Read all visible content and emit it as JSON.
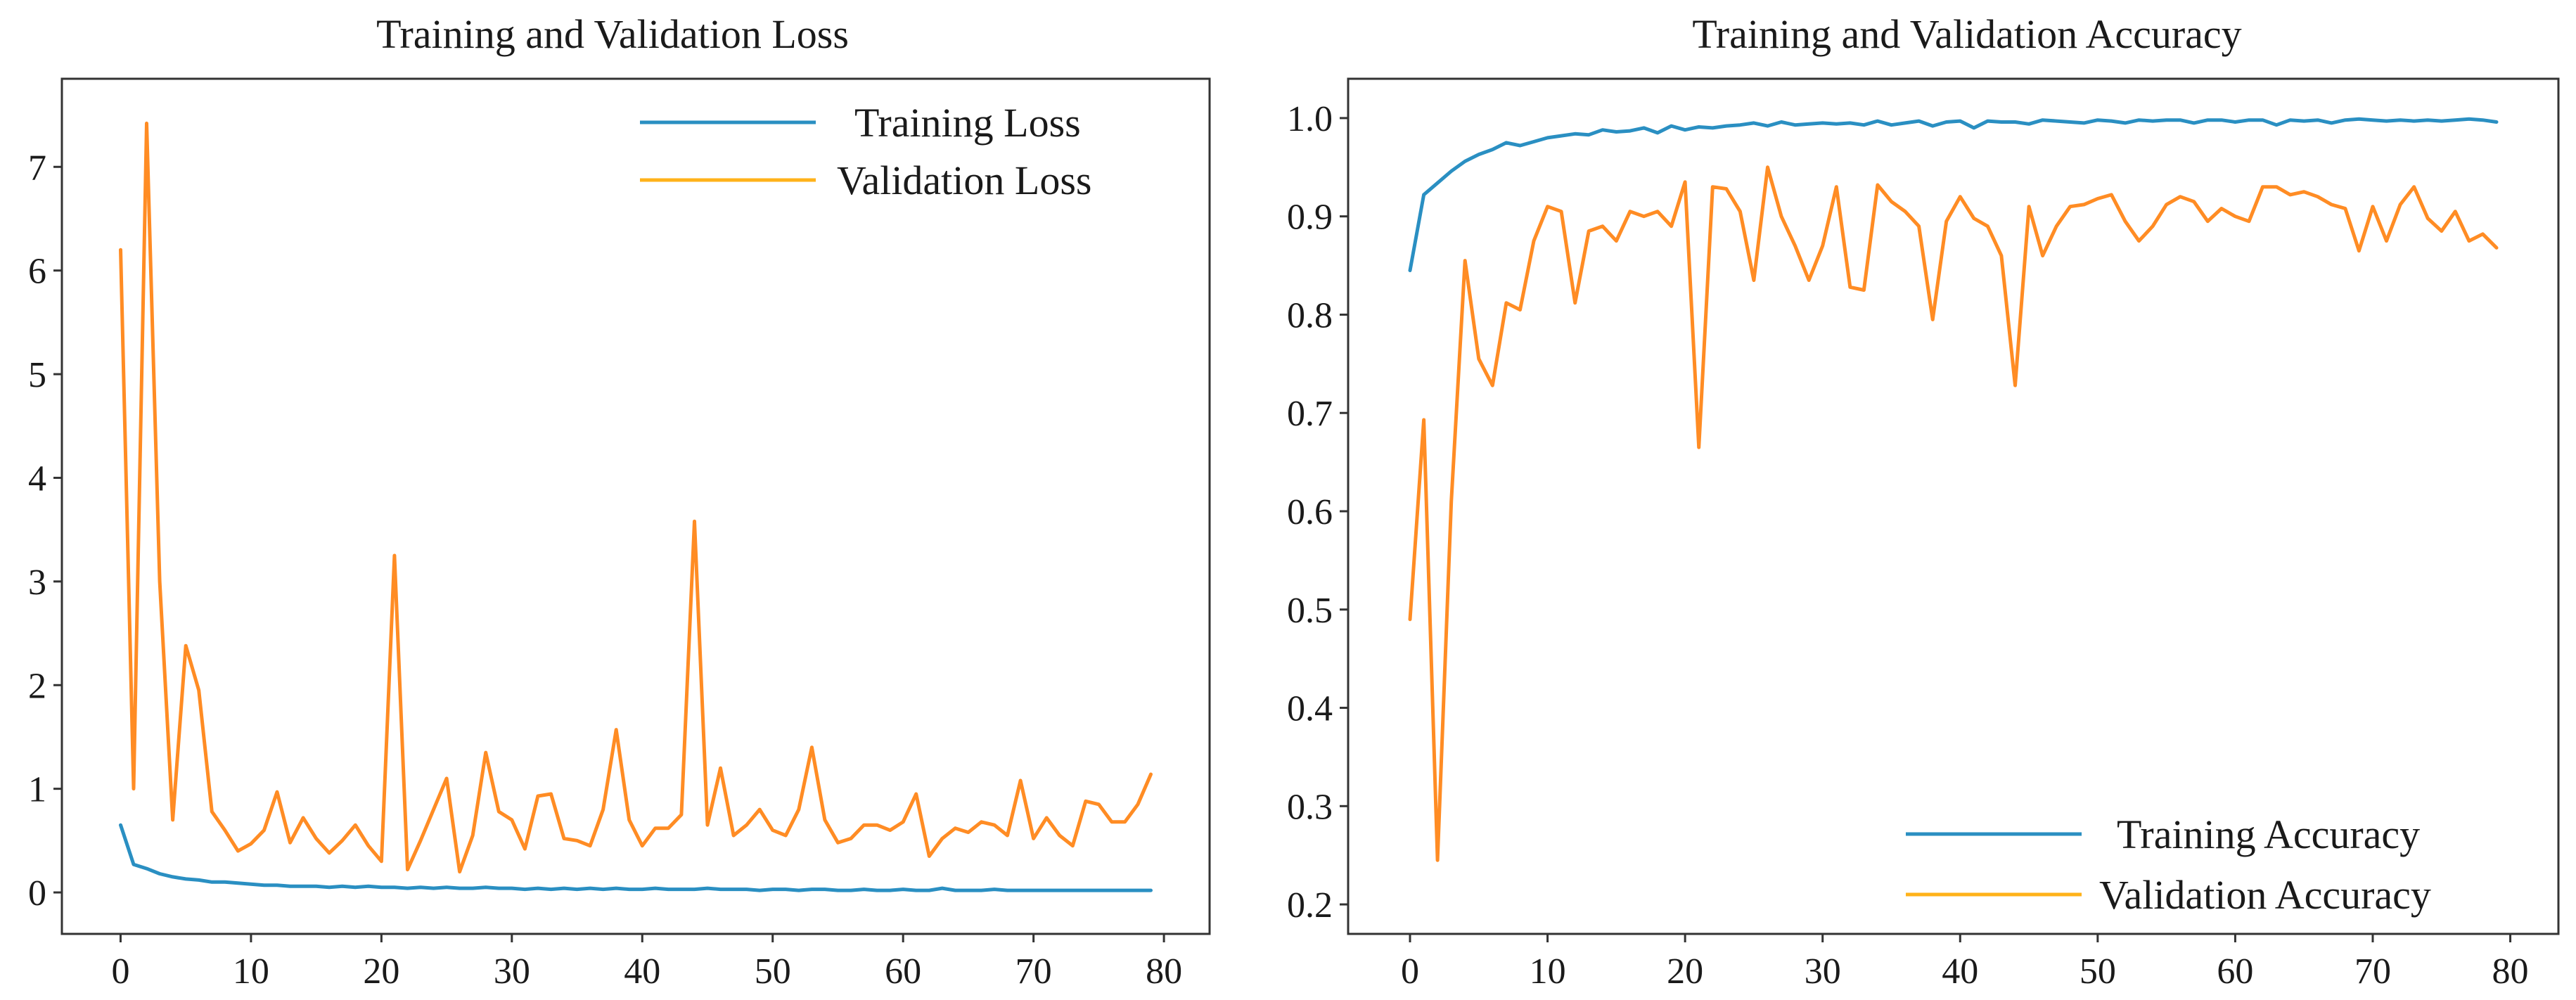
{
  "colors": {
    "training": "#2a8fc2",
    "validation": "#ff8c24",
    "legend_validation": "#ffb21a",
    "axis": "#333333"
  },
  "chart_data": [
    {
      "type": "line",
      "title": "Training and Validation Loss",
      "xlabel": "",
      "ylabel": "",
      "xlim": [
        -4.5,
        83.5
      ],
      "ylim": [
        -0.4,
        7.85
      ],
      "xticks": [
        0,
        10,
        20,
        30,
        40,
        50,
        60,
        70,
        80
      ],
      "yticks": [
        0,
        1,
        2,
        3,
        4,
        5,
        6,
        7
      ],
      "legend_position": "top-right",
      "x": [
        0,
        1,
        2,
        3,
        4,
        5,
        6,
        7,
        8,
        9,
        10,
        11,
        12,
        13,
        14,
        15,
        16,
        17,
        18,
        19,
        20,
        21,
        22,
        23,
        24,
        25,
        26,
        27,
        28,
        29,
        30,
        31,
        32,
        33,
        34,
        35,
        36,
        37,
        38,
        39,
        40,
        41,
        42,
        43,
        44,
        45,
        46,
        47,
        48,
        49,
        50,
        51,
        52,
        53,
        54,
        55,
        56,
        57,
        58,
        59,
        60,
        61,
        62,
        63,
        64,
        65,
        66,
        67,
        68,
        69,
        70,
        71,
        72,
        73,
        74,
        75,
        76,
        77,
        78,
        79
      ],
      "series": [
        {
          "name": "Training Loss",
          "color": "#2a8fc2",
          "values": [
            0.65,
            0.27,
            0.23,
            0.18,
            0.15,
            0.13,
            0.12,
            0.1,
            0.1,
            0.09,
            0.08,
            0.07,
            0.07,
            0.06,
            0.06,
            0.06,
            0.05,
            0.06,
            0.05,
            0.06,
            0.05,
            0.05,
            0.04,
            0.05,
            0.04,
            0.05,
            0.04,
            0.04,
            0.05,
            0.04,
            0.04,
            0.03,
            0.04,
            0.03,
            0.04,
            0.03,
            0.04,
            0.03,
            0.04,
            0.03,
            0.03,
            0.04,
            0.03,
            0.03,
            0.03,
            0.04,
            0.03,
            0.03,
            0.03,
            0.02,
            0.03,
            0.03,
            0.02,
            0.03,
            0.03,
            0.02,
            0.02,
            0.03,
            0.02,
            0.02,
            0.03,
            0.02,
            0.02,
            0.04,
            0.02,
            0.02,
            0.02,
            0.03,
            0.02,
            0.02,
            0.02,
            0.02,
            0.02,
            0.02,
            0.02,
            0.02,
            0.02,
            0.02,
            0.02,
            0.02
          ]
        },
        {
          "name": "Validation Loss",
          "color": "#ff8c24",
          "values": [
            6.2,
            1.0,
            7.42,
            3.0,
            0.7,
            2.38,
            1.95,
            0.78,
            0.6,
            0.4,
            0.47,
            0.6,
            0.97,
            0.48,
            0.72,
            0.52,
            0.38,
            0.5,
            0.65,
            0.45,
            0.3,
            3.25,
            0.22,
            0.5,
            0.8,
            1.1,
            0.2,
            0.55,
            1.35,
            0.78,
            0.7,
            0.42,
            0.93,
            0.95,
            0.52,
            0.5,
            0.45,
            0.8,
            1.57,
            0.7,
            0.45,
            0.62,
            0.62,
            0.75,
            3.58,
            0.65,
            1.2,
            0.55,
            0.65,
            0.8,
            0.6,
            0.55,
            0.8,
            1.4,
            0.7,
            0.48,
            0.52,
            0.65,
            0.65,
            0.6,
            0.68,
            0.95,
            0.35,
            0.52,
            0.62,
            0.58,
            0.68,
            0.65,
            0.55,
            1.08,
            0.52,
            0.72,
            0.55,
            0.45,
            0.88,
            0.85,
            0.68,
            0.68,
            0.85,
            1.14
          ]
        }
      ]
    },
    {
      "type": "line",
      "title": "Training and Validation Accuracy",
      "xlabel": "",
      "ylabel": "",
      "xlim": [
        -4.5,
        83.5
      ],
      "ylim": [
        0.17,
        1.04
      ],
      "xticks": [
        0,
        10,
        20,
        30,
        40,
        50,
        60,
        70,
        80
      ],
      "yticks": [
        0.2,
        0.3,
        0.4,
        0.5,
        0.6,
        0.7,
        0.8,
        0.9,
        1.0
      ],
      "legend_position": "bottom-right",
      "x": [
        0,
        1,
        2,
        3,
        4,
        5,
        6,
        7,
        8,
        9,
        10,
        11,
        12,
        13,
        14,
        15,
        16,
        17,
        18,
        19,
        20,
        21,
        22,
        23,
        24,
        25,
        26,
        27,
        28,
        29,
        30,
        31,
        32,
        33,
        34,
        35,
        36,
        37,
        38,
        39,
        40,
        41,
        42,
        43,
        44,
        45,
        46,
        47,
        48,
        49,
        50,
        51,
        52,
        53,
        54,
        55,
        56,
        57,
        58,
        59,
        60,
        61,
        62,
        63,
        64,
        65,
        66,
        67,
        68,
        69,
        70,
        71,
        72,
        73,
        74,
        75,
        76,
        77,
        78,
        79
      ],
      "series": [
        {
          "name": "Training Accuracy",
          "color": "#2a8fc2",
          "values": [
            0.845,
            0.922,
            0.934,
            0.946,
            0.956,
            0.963,
            0.968,
            0.975,
            0.972,
            0.976,
            0.98,
            0.982,
            0.984,
            0.983,
            0.988,
            0.986,
            0.987,
            0.99,
            0.985,
            0.992,
            0.988,
            0.991,
            0.99,
            0.992,
            0.993,
            0.995,
            0.992,
            0.996,
            0.993,
            0.994,
            0.995,
            0.994,
            0.995,
            0.993,
            0.997,
            0.993,
            0.995,
            0.997,
            0.992,
            0.996,
            0.997,
            0.99,
            0.997,
            0.996,
            0.996,
            0.994,
            0.998,
            0.997,
            0.996,
            0.995,
            0.998,
            0.997,
            0.995,
            0.998,
            0.997,
            0.998,
            0.998,
            0.995,
            0.998,
            0.998,
            0.996,
            0.998,
            0.998,
            0.993,
            0.998,
            0.997,
            0.998,
            0.995,
            0.998,
            0.999,
            0.998,
            0.997,
            0.998,
            0.997,
            0.998,
            0.997,
            0.998,
            0.999,
            0.998,
            0.996
          ]
        },
        {
          "name": "Validation Accuracy",
          "color": "#ff8c24",
          "values": [
            0.49,
            0.693,
            0.245,
            0.61,
            0.855,
            0.755,
            0.728,
            0.812,
            0.805,
            0.875,
            0.91,
            0.905,
            0.812,
            0.885,
            0.89,
            0.875,
            0.905,
            0.9,
            0.905,
            0.89,
            0.935,
            0.665,
            0.93,
            0.928,
            0.905,
            0.835,
            0.95,
            0.9,
            0.87,
            0.835,
            0.87,
            0.93,
            0.828,
            0.825,
            0.932,
            0.915,
            0.905,
            0.89,
            0.795,
            0.895,
            0.92,
            0.898,
            0.89,
            0.86,
            0.728,
            0.91,
            0.86,
            0.89,
            0.91,
            0.912,
            0.918,
            0.922,
            0.895,
            0.875,
            0.89,
            0.912,
            0.92,
            0.915,
            0.895,
            0.908,
            0.9,
            0.895,
            0.93,
            0.93,
            0.922,
            0.925,
            0.92,
            0.912,
            0.908,
            0.865,
            0.91,
            0.875,
            0.912,
            0.93,
            0.898,
            0.885,
            0.905,
            0.875,
            0.882,
            0.868
          ]
        }
      ]
    }
  ]
}
